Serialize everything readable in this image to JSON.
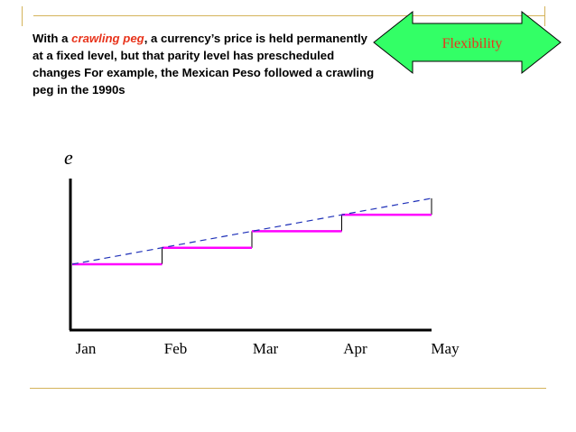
{
  "slide": {
    "caption": {
      "lead": "With a ",
      "term": "crawling peg",
      "rest": ", a currency’s price is held permanently at a fixed level, but that parity level has prescheduled changes  For example, the Mexican Peso followed a crawling peg in the 1990s"
    },
    "badge": {
      "label": "Flexibility",
      "fill": "#33ff66",
      "text_color": "#e8341c"
    }
  },
  "chart_data": {
    "type": "line",
    "ylabel": "e",
    "categories": [
      "Jan",
      "Feb",
      "Mar",
      "Apr",
      "May"
    ],
    "peg_levels": [
      1.0,
      1.25,
      1.5,
      1.75,
      2.0
    ],
    "trend": {
      "from": 1.0,
      "to": 2.0
    },
    "ylim": [
      0,
      2.3
    ],
    "series_colors": {
      "peg": "#ff00ff",
      "trend": "#1d2fb8",
      "step": "#000000"
    }
  }
}
